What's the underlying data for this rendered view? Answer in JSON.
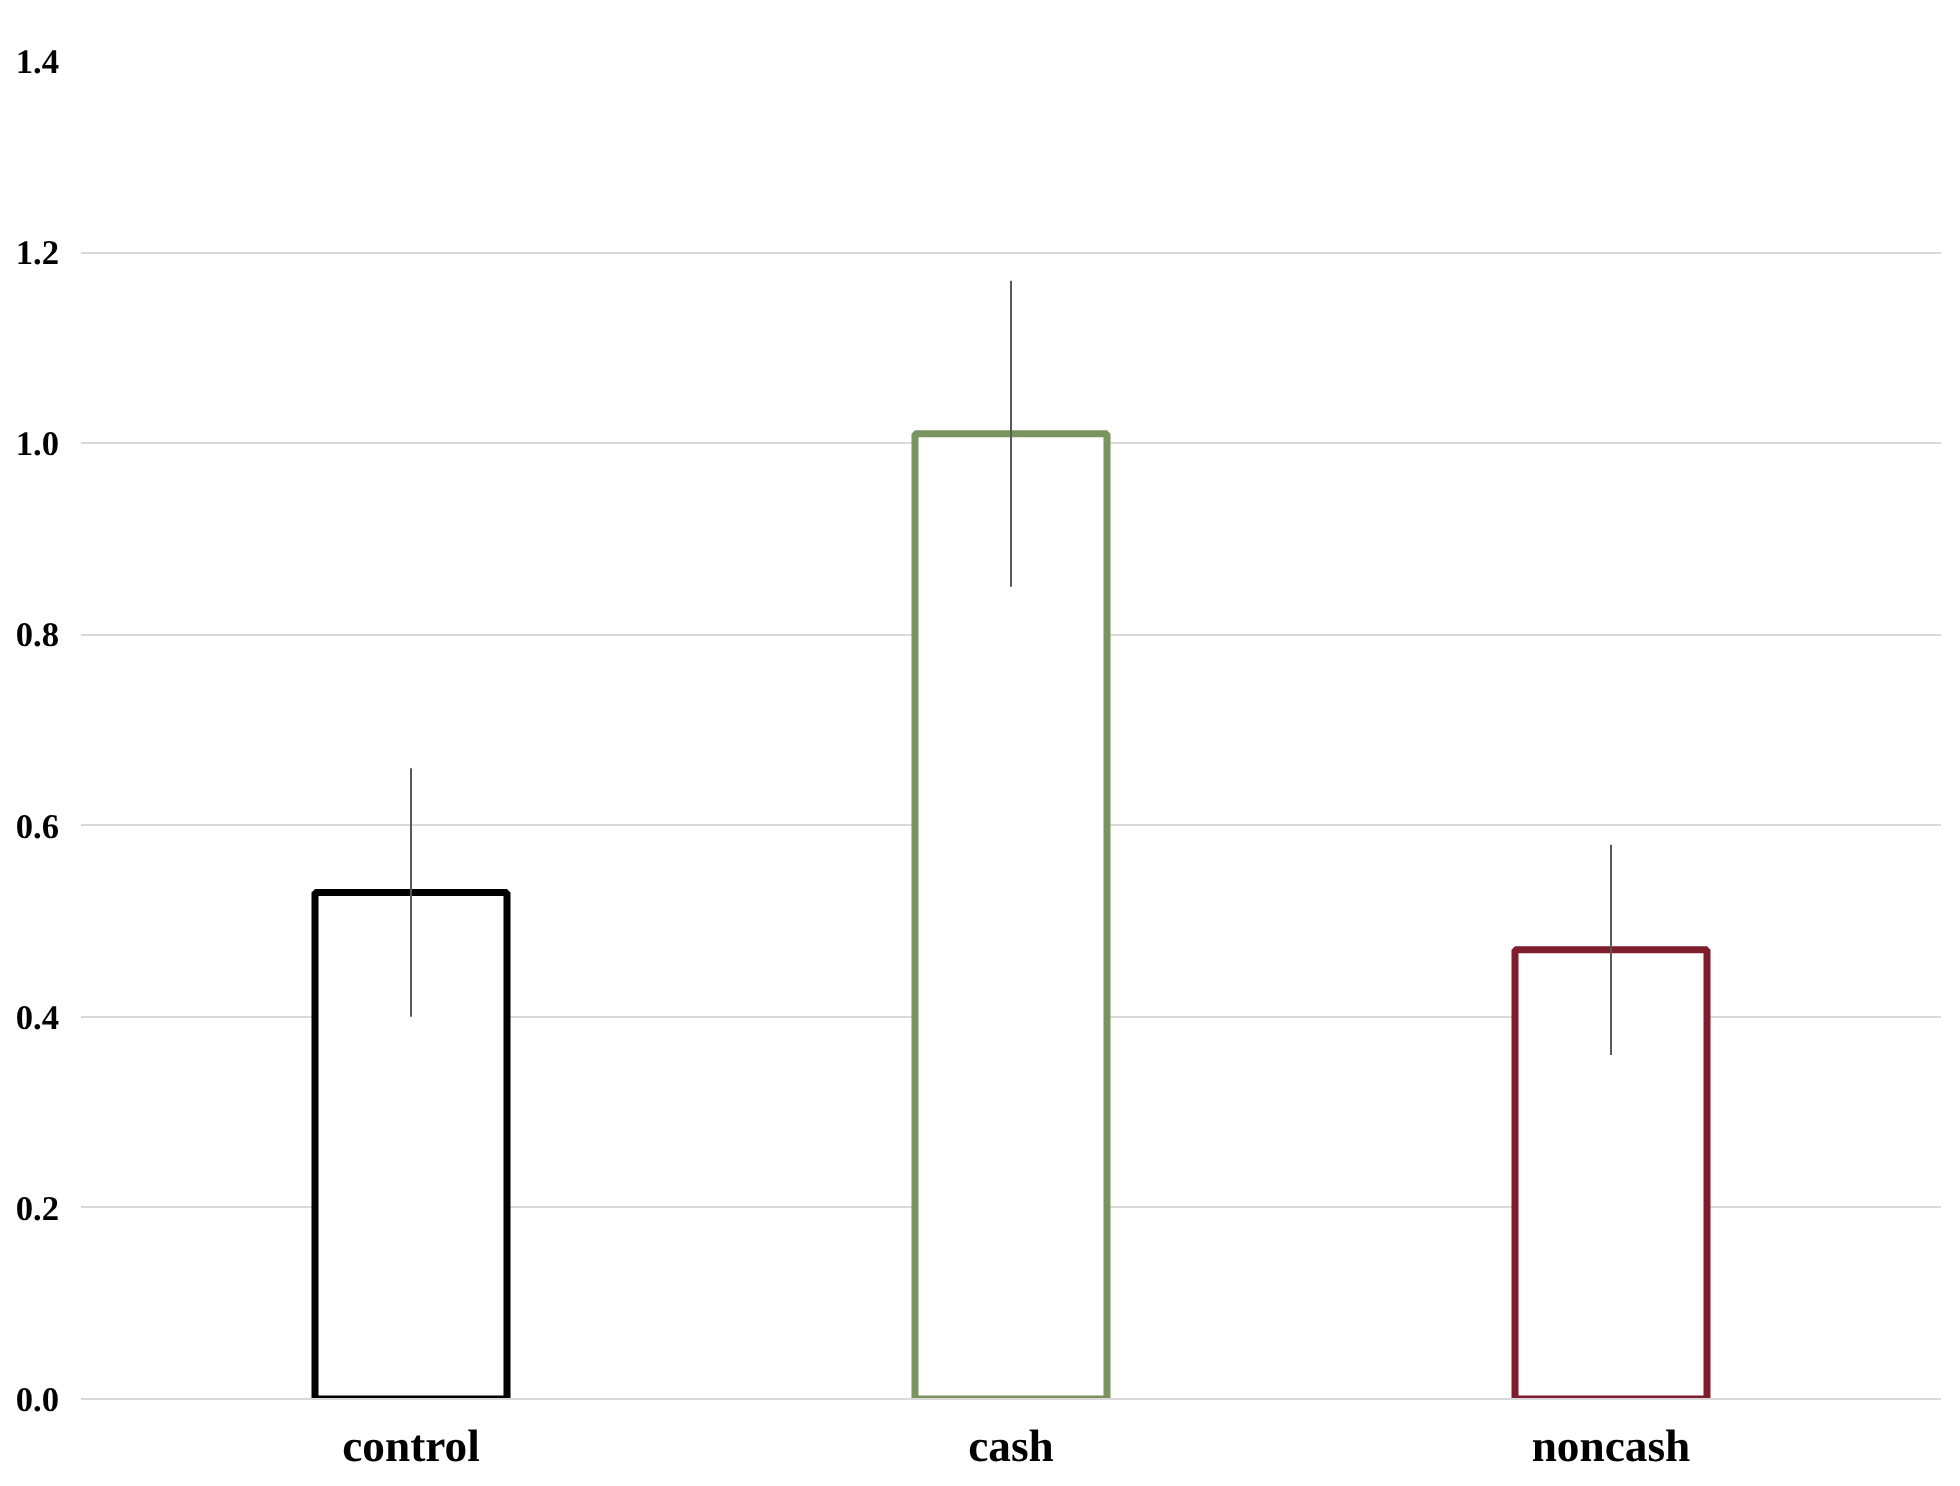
{
  "chart_data": {
    "type": "bar",
    "categories": [
      "control",
      "cash",
      "noncash"
    ],
    "values": [
      0.53,
      1.01,
      0.47
    ],
    "colors": [
      "#000000",
      "#7a9460",
      "#7f1d2d"
    ],
    "errors": [
      [
        0.4,
        0.66
      ],
      [
        0.85,
        1.17
      ],
      [
        0.36,
        0.58
      ]
    ],
    "ylim": [
      0,
      1.4
    ],
    "yticks": [
      {
        "value": 0,
        "label": "0.0"
      },
      {
        "value": 0.2,
        "label": "0.2"
      },
      {
        "value": 0.4,
        "label": "0.4"
      },
      {
        "value": 0.6,
        "label": "0.6"
      },
      {
        "value": 0.8,
        "label": "0.8"
      },
      {
        "value": 1.0,
        "label": "1.0"
      },
      {
        "value": 1.2,
        "label": "1.2"
      },
      {
        "value": 1.4,
        "label": "1.4"
      }
    ],
    "grid": "y"
  }
}
